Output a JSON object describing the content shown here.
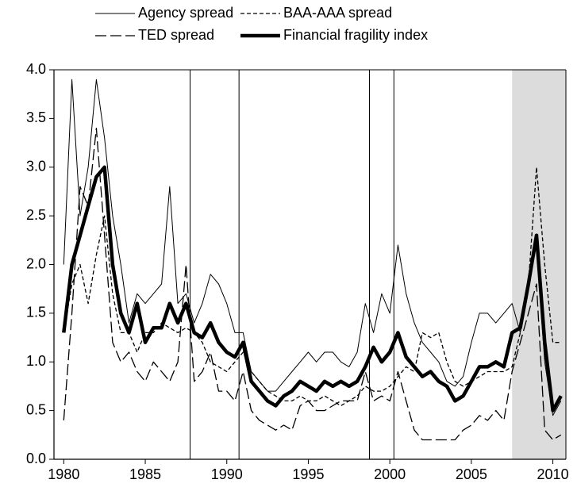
{
  "chart_data": {
    "type": "line",
    "x": [
      1980,
      1980.5,
      1981,
      1981.5,
      1982,
      1982.5,
      1983,
      1983.5,
      1984,
      1984.5,
      1985,
      1985.5,
      1986,
      1986.5,
      1987,
      1987.5,
      1988,
      1988.5,
      1989,
      1989.5,
      1990,
      1990.5,
      1991,
      1991.5,
      1992,
      1992.5,
      1993,
      1993.5,
      1994,
      1994.5,
      1995,
      1995.5,
      1996,
      1996.5,
      1997,
      1997.5,
      1998,
      1998.5,
      1999,
      1999.5,
      2000,
      2000.5,
      2001,
      2001.5,
      2002,
      2002.5,
      2003,
      2003.5,
      2004,
      2004.5,
      2005,
      2005.5,
      2006,
      2006.5,
      2007,
      2007.5,
      2008,
      2008.5,
      2009,
      2009.5,
      2010,
      2010.5
    ],
    "series": [
      {
        "name": "Agency spread",
        "color": "#000000",
        "line_style": "thin",
        "values": [
          2.0,
          3.9,
          2.5,
          3.0,
          3.9,
          3.3,
          2.5,
          2.0,
          1.4,
          1.7,
          1.6,
          1.7,
          1.8,
          2.8,
          1.6,
          1.7,
          1.4,
          1.6,
          1.9,
          1.8,
          1.6,
          1.3,
          1.3,
          0.9,
          0.8,
          0.7,
          0.7,
          0.8,
          0.9,
          1.0,
          1.1,
          1.0,
          1.1,
          1.1,
          1.0,
          0.95,
          1.1,
          1.6,
          1.3,
          1.7,
          1.5,
          2.2,
          1.7,
          1.4,
          1.2,
          1.1,
          1.0,
          0.8,
          0.75,
          0.85,
          1.2,
          1.5,
          1.5,
          1.4,
          1.5,
          1.6,
          1.3,
          1.8,
          2.2,
          1.0,
          0.45,
          0.6
        ]
      },
      {
        "name": "BAA-AAA spread",
        "color": "#000000",
        "line_style": "short-dash",
        "values": [
          1.3,
          1.8,
          2.0,
          1.6,
          2.1,
          2.5,
          1.7,
          1.3,
          1.3,
          1.1,
          1.3,
          1.3,
          1.4,
          1.35,
          1.3,
          1.35,
          1.3,
          1.2,
          1.0,
          0.95,
          0.9,
          1.0,
          1.1,
          0.9,
          0.8,
          0.7,
          0.65,
          0.6,
          0.6,
          0.65,
          0.6,
          0.6,
          0.65,
          0.6,
          0.55,
          0.6,
          0.65,
          0.75,
          0.7,
          0.7,
          0.75,
          0.85,
          0.95,
          0.9,
          1.3,
          1.25,
          1.3,
          1.0,
          0.8,
          0.75,
          0.8,
          0.85,
          0.9,
          0.9,
          0.9,
          0.95,
          1.3,
          1.8,
          3.0,
          2.0,
          1.2,
          1.2
        ]
      },
      {
        "name": "TED spread",
        "color": "#000000",
        "line_style": "long-dash",
        "values": [
          0.4,
          1.5,
          2.8,
          2.6,
          3.4,
          2.3,
          1.2,
          1.0,
          1.1,
          0.9,
          0.8,
          1.0,
          0.9,
          0.8,
          1.0,
          2.0,
          0.8,
          0.9,
          1.1,
          0.7,
          0.7,
          0.6,
          0.9,
          0.5,
          0.4,
          0.35,
          0.3,
          0.35,
          0.3,
          0.55,
          0.6,
          0.5,
          0.5,
          0.55,
          0.6,
          0.6,
          0.6,
          0.9,
          0.6,
          0.65,
          0.6,
          0.9,
          0.6,
          0.3,
          0.2,
          0.2,
          0.2,
          0.2,
          0.2,
          0.3,
          0.35,
          0.45,
          0.4,
          0.5,
          0.4,
          0.9,
          1.2,
          1.5,
          1.8,
          0.3,
          0.2,
          0.25
        ]
      },
      {
        "name": "Financial fragility index",
        "color": "#000000",
        "line_style": "thick",
        "values": [
          1.3,
          2.0,
          2.3,
          2.6,
          2.9,
          3.0,
          2.0,
          1.5,
          1.3,
          1.6,
          1.2,
          1.35,
          1.35,
          1.6,
          1.4,
          1.6,
          1.3,
          1.25,
          1.4,
          1.2,
          1.1,
          1.05,
          1.2,
          0.8,
          0.7,
          0.6,
          0.55,
          0.65,
          0.7,
          0.8,
          0.75,
          0.7,
          0.8,
          0.75,
          0.8,
          0.75,
          0.8,
          0.95,
          1.15,
          1.0,
          1.1,
          1.3,
          1.05,
          0.95,
          0.85,
          0.9,
          0.8,
          0.75,
          0.6,
          0.65,
          0.8,
          0.95,
          0.95,
          1.0,
          0.95,
          1.3,
          1.35,
          1.8,
          2.3,
          1.2,
          0.5,
          0.65
        ]
      }
    ],
    "xlim": [
      1979.4,
      2010.8
    ],
    "ylim": [
      0,
      4
    ],
    "xticks": [
      1980,
      1985,
      1990,
      1995,
      2000,
      2005,
      2010
    ],
    "yticks": [
      {
        "value": 0,
        "label": "0.0"
      },
      {
        "value": 0.5,
        "label": "0.5"
      },
      {
        "value": 1,
        "label": "1.0"
      },
      {
        "value": 1.5,
        "label": "1.5"
      },
      {
        "value": 2,
        "label": "2.0"
      },
      {
        "value": 2.5,
        "label": "2.5"
      },
      {
        "value": 3,
        "label": "3.0"
      },
      {
        "value": 3.5,
        "label": "3.5"
      },
      {
        "value": 4,
        "label": "4.0"
      }
    ],
    "event_lines": [
      1987.75,
      1990.75,
      1998.75,
      2000.25
    ],
    "shaded_x": [
      2007.5,
      2010.8
    ],
    "grid": false
  }
}
